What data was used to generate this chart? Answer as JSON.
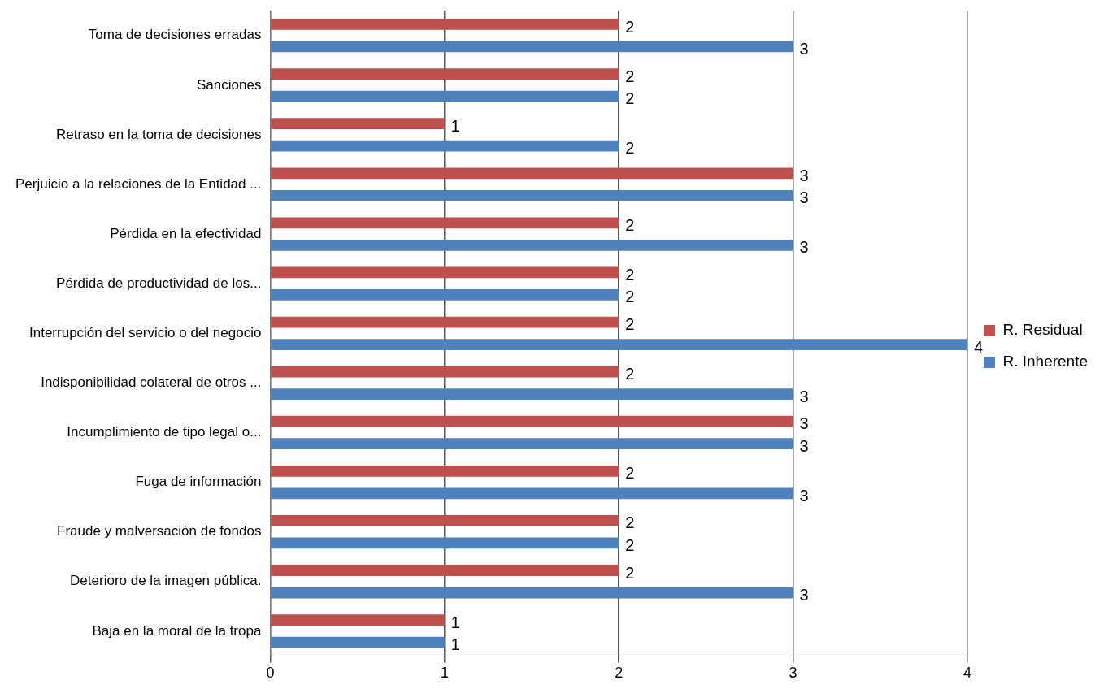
{
  "chart_data": {
    "type": "bar",
    "orientation": "horizontal",
    "categories": [
      "Toma de decisiones erradas",
      "Sanciones",
      "Retraso en la toma de decisiones",
      "Perjuicio a la relaciones de la Entidad ...",
      "Pérdida en la efectividad",
      "Pérdida de productividad de los...",
      "Interrupción del servicio o del negocio",
      "Indisponibilidad colateral de otros ...",
      "Incumplimiento de tipo legal o...",
      "Fuga de información",
      "Fraude y malversación de fondos",
      "Deterioro de la imagen pública.",
      "Baja en la moral de la tropa"
    ],
    "series": [
      {
        "name": "R. Residual",
        "color": "#c0504d",
        "values": [
          2,
          2,
          1,
          3,
          2,
          2,
          2,
          2,
          3,
          2,
          2,
          2,
          1
        ]
      },
      {
        "name": "R. Inherente",
        "color": "#4f81bd",
        "values": [
          3,
          2,
          2,
          3,
          3,
          2,
          4,
          3,
          3,
          3,
          2,
          3,
          1
        ]
      }
    ],
    "xlim": [
      0,
      4
    ],
    "xticks": [
      0,
      1,
      2,
      3,
      4
    ],
    "grid": "x",
    "legend": "right",
    "data_labels": true
  }
}
